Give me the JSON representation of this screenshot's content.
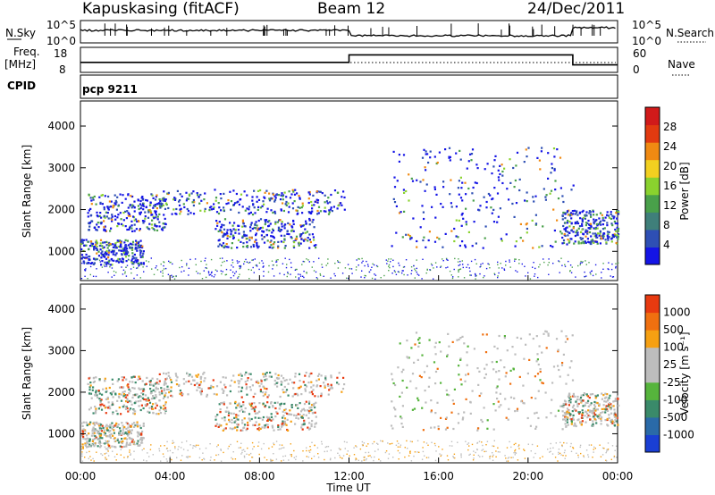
{
  "header": {
    "radar": "Kapuskasing (fitACF)",
    "beam": "Beam 12",
    "date": "24/Dec/2011"
  },
  "strip": {
    "nsky_label": "N.Sky",
    "nsearch_label": "N.Search",
    "noise_ticks": [
      "10^5",
      "10^0"
    ],
    "freq_label_1": "Freq.",
    "freq_label_2": "[MHz]",
    "freq_ticks": [
      "18",
      "8"
    ],
    "nave_label": "Nave",
    "nave_ticks": [
      "60",
      "0"
    ],
    "cpid_label": "CPID",
    "cpid_value": "pcp 9211",
    "freq_steps": [
      {
        "t": 0,
        "v": 12
      },
      {
        "t": 12,
        "v": 15
      },
      {
        "t": 22,
        "v": 11
      }
    ]
  },
  "chart_data": [
    {
      "type": "heatmap",
      "name": "power",
      "ylabel": "Slant Range [km]",
      "yticks": [
        "4000",
        "3000",
        "2000",
        "1000"
      ],
      "yticks_values": [
        4000,
        3000,
        2000,
        1000
      ],
      "ylim": [
        300,
        4600
      ],
      "xlim": [
        0,
        24
      ],
      "colorbar": {
        "label": "Power [dB]",
        "labels": [
          "28",
          "24",
          "20",
          "16",
          "12",
          "8",
          "4"
        ],
        "colors": [
          "#1414e6",
          "#2e4fb4",
          "#3f7f7a",
          "#49a04a",
          "#8ad22e",
          "#f2d020",
          "#f08a12",
          "#e23a10",
          "#d11a1a"
        ]
      },
      "echo_regions": [
        {
          "t0": 0.0,
          "t1": 2.8,
          "r0": 700,
          "r1": 1300
        },
        {
          "t0": 0.3,
          "t1": 3.8,
          "r0": 1500,
          "r1": 2400
        },
        {
          "t0": 3.5,
          "t1": 11.8,
          "r0": 1900,
          "r1": 2500
        },
        {
          "t0": 6.0,
          "t1": 10.5,
          "r0": 1100,
          "r1": 1800
        },
        {
          "t0": 13.8,
          "t1": 22.0,
          "r0": 1100,
          "r1": 3500
        },
        {
          "t0": 21.5,
          "t1": 24.0,
          "r0": 1200,
          "r1": 2000
        }
      ]
    },
    {
      "type": "heatmap",
      "name": "velocity",
      "ylabel": "Slant Range [km]",
      "yticks": [
        "4000",
        "3000",
        "2000",
        "1000"
      ],
      "yticks_values": [
        4000,
        3000,
        2000,
        1000
      ],
      "ylim": [
        300,
        4600
      ],
      "xlim": [
        0,
        24
      ],
      "xlabel": "Time UT",
      "xticks": [
        "00:00",
        "04:00",
        "08:00",
        "12:00",
        "16:00",
        "20:00",
        "00:00"
      ],
      "xticks_values": [
        0,
        4,
        8,
        12,
        16,
        20,
        24
      ],
      "colorbar": {
        "label": "Velocity [m s⁻¹]",
        "labels": [
          "1000",
          "500",
          "100",
          "25",
          "-25",
          "-100",
          "-500",
          "-1000"
        ],
        "colors": [
          "#1a3fd4",
          "#2a6aa8",
          "#3a8a6a",
          "#56b43c",
          "#bdbdbd",
          "#bdbdbd",
          "#f6a012",
          "#f07010",
          "#e83a10"
        ]
      }
    }
  ]
}
